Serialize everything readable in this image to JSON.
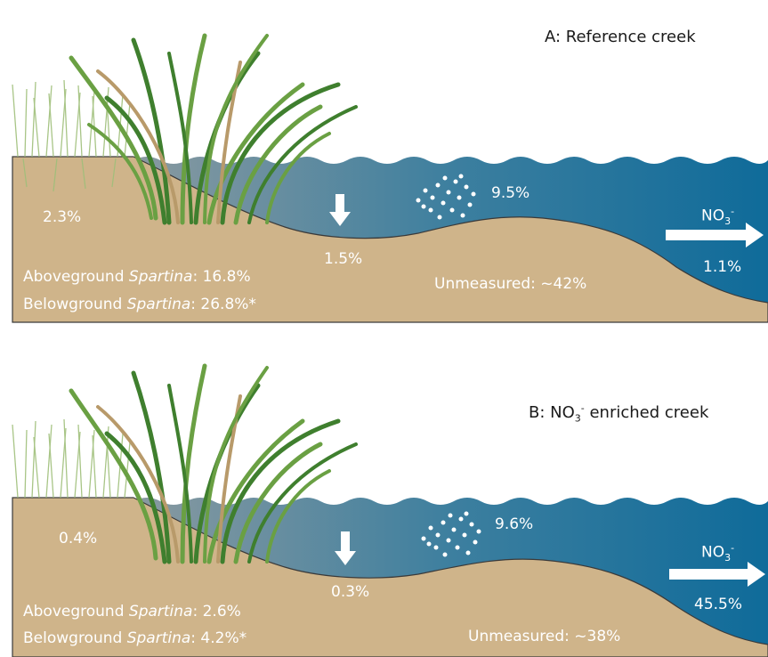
{
  "colors": {
    "sediment": "#cfb48a",
    "sediment_edge": "#3a3a3a",
    "water_left": "#8a9aa0",
    "water_right": "#0f6b9a",
    "grass_dark": "#3f7f2e",
    "grass_mid": "#6aa043",
    "grass_tan": "#b89a6a",
    "dead_grass": "#9fbf7a",
    "label_text": "#ffffff",
    "title_text": "#1a1a1a"
  },
  "icons": {
    "down_arrow": "down-arrow-icon",
    "right_arrow": "right-arrow-icon",
    "dots": "dots-cluster-icon"
  },
  "panel_a": {
    "title_prefix": "A: Reference creek",
    "marsh_pct": "2.3%",
    "burial_pct": "1.5%",
    "denit_pct": "9.5%",
    "export_label": "NO",
    "export_sub": "3",
    "export_sup": "-",
    "export_pct": "1.1%",
    "above_label": "Aboveground ",
    "above_species": "Spartina",
    "above_value": ": 16.8%",
    "below_label": "Belowground ",
    "below_species": "Spartina",
    "below_value": ": 26.8%*",
    "unmeasured": "Unmeasured: ~42%"
  },
  "panel_b": {
    "title_prefix": "B: NO",
    "title_sub": "3",
    "title_sup": "-",
    "title_suffix": " enriched creek",
    "marsh_pct": "0.4%",
    "burial_pct": "0.3%",
    "denit_pct": "9.6%",
    "export_label": "NO",
    "export_sub": "3",
    "export_sup": "-",
    "export_pct": "45.5%",
    "above_label": "Aboveground ",
    "above_species": "Spartina",
    "above_value": ": 2.6%",
    "below_label": "Belowground ",
    "below_species": "Spartina",
    "below_value": ": 4.2%*",
    "unmeasured": "Unmeasured: ~38%"
  }
}
